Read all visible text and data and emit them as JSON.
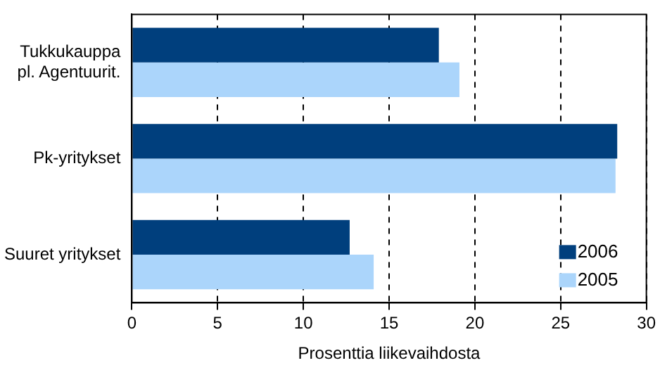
{
  "chart_data": {
    "type": "bar",
    "orientation": "horizontal",
    "xlabel": "Prosenttia liikevaihdosta",
    "categories": [
      "Tukkukauppa\npl. Agentuurit.",
      "Pk-yritykset",
      "Suuret yritykset"
    ],
    "series": [
      {
        "name": "2006",
        "color": "#003f7d",
        "values": [
          17.9,
          28.3,
          12.7
        ]
      },
      {
        "name": "2005",
        "color": "#abd5fb",
        "values": [
          19.1,
          28.2,
          14.1
        ]
      }
    ],
    "xlim": [
      0,
      30
    ],
    "xticks": [
      0,
      5,
      10,
      15,
      20,
      25,
      30
    ],
    "grid": "x",
    "legend": "bottom right"
  }
}
